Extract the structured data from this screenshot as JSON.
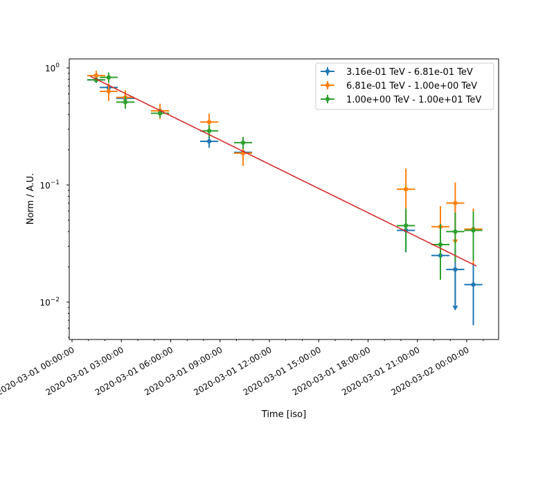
{
  "chart_data": {
    "type": "scatter",
    "title": "",
    "xlabel": "Time [iso]",
    "ylabel": "Norm / A.U.",
    "yscale": "log",
    "xlim_hours": [
      -0.2,
      26.0
    ],
    "ylim": [
      0.0048,
      1.18
    ],
    "x_ticks": [
      {
        "hours": 0,
        "label": "2020-03-01 00:00:00"
      },
      {
        "hours": 3,
        "label": "2020-03-01 03:00:00"
      },
      {
        "hours": 6,
        "label": "2020-03-01 06:00:00"
      },
      {
        "hours": 9,
        "label": "2020-03-01 09:00:00"
      },
      {
        "hours": 12,
        "label": "2020-03-01 12:00:00"
      },
      {
        "hours": 15,
        "label": "2020-03-01 15:00:00"
      },
      {
        "hours": 18,
        "label": "2020-03-01 18:00:00"
      },
      {
        "hours": 21,
        "label": "2020-03-01 21:00:00"
      },
      {
        "hours": 24,
        "label": "2020-03-02 00:00:00"
      }
    ],
    "y_ticks": [
      {
        "value": 1,
        "label": "10^0",
        "base": "10",
        "exp": "0"
      },
      {
        "value": 0.1,
        "label": "10^-1",
        "base": "10",
        "exp": "−1"
      },
      {
        "value": 0.01,
        "label": "10^-2",
        "base": "10",
        "exp": "−2"
      }
    ],
    "legend_position": "top-right",
    "series": [
      {
        "name": "3.16e-01 TeV - 6.81e-01 TeV",
        "color": "#1f77b4",
        "x_hours": [
          1.47,
          2.23,
          3.24,
          5.35,
          8.34,
          10.4,
          20.3,
          22.4,
          23.3,
          24.4
        ],
        "values": [
          0.79,
          0.68,
          0.55,
          0.41,
          0.236,
          0.19,
          0.041,
          0.025,
          0.019,
          0.0141
        ],
        "yerr_rel": [
          0.06,
          0.07,
          0.07,
          0.06,
          0.12,
          0.1,
          0.35,
          0.35,
          0.5,
          0.55
        ],
        "upper_limit": [
          false,
          false,
          false,
          false,
          false,
          false,
          false,
          false,
          true,
          false
        ]
      },
      {
        "name": "6.81e-01 TeV - 1.00e+00 TeV",
        "color": "#ff7f0e",
        "x_hours": [
          1.47,
          2.23,
          3.24,
          5.35,
          8.34,
          10.4,
          20.3,
          22.4,
          23.3,
          24.4
        ],
        "values": [
          0.86,
          0.63,
          0.56,
          0.43,
          0.345,
          0.187,
          0.092,
          0.044,
          0.07,
          0.042
        ],
        "yerr_rel": [
          0.1,
          0.17,
          0.15,
          0.15,
          0.18,
          0.22,
          0.5,
          0.5,
          0.5,
          0.5
        ],
        "upper_limit": [
          false,
          false,
          false,
          false,
          false,
          false,
          false,
          false,
          true,
          false
        ]
      },
      {
        "name": "1.00e+00 TeV - 1.00e+01 TeV",
        "color": "#2ca02c",
        "x_hours": [
          1.47,
          2.23,
          3.24,
          5.35,
          8.34,
          10.4,
          20.3,
          22.4,
          23.3,
          24.4
        ],
        "values": [
          0.79,
          0.83,
          0.51,
          0.41,
          0.29,
          0.23,
          0.045,
          0.031,
          0.04,
          0.041
        ],
        "yerr_rel": [
          0.05,
          0.1,
          0.12,
          0.08,
          0.12,
          0.12,
          0.4,
          0.5,
          0.45,
          0.45
        ],
        "upper_limit": [
          false,
          false,
          false,
          false,
          false,
          false,
          false,
          false,
          false,
          false
        ]
      }
    ],
    "xerr_hours": 0.55,
    "fit_line": {
      "color": "#d62728",
      "x_hours": [
        1.1,
        24.6
      ],
      "values": [
        0.85,
        0.0203
      ]
    }
  }
}
